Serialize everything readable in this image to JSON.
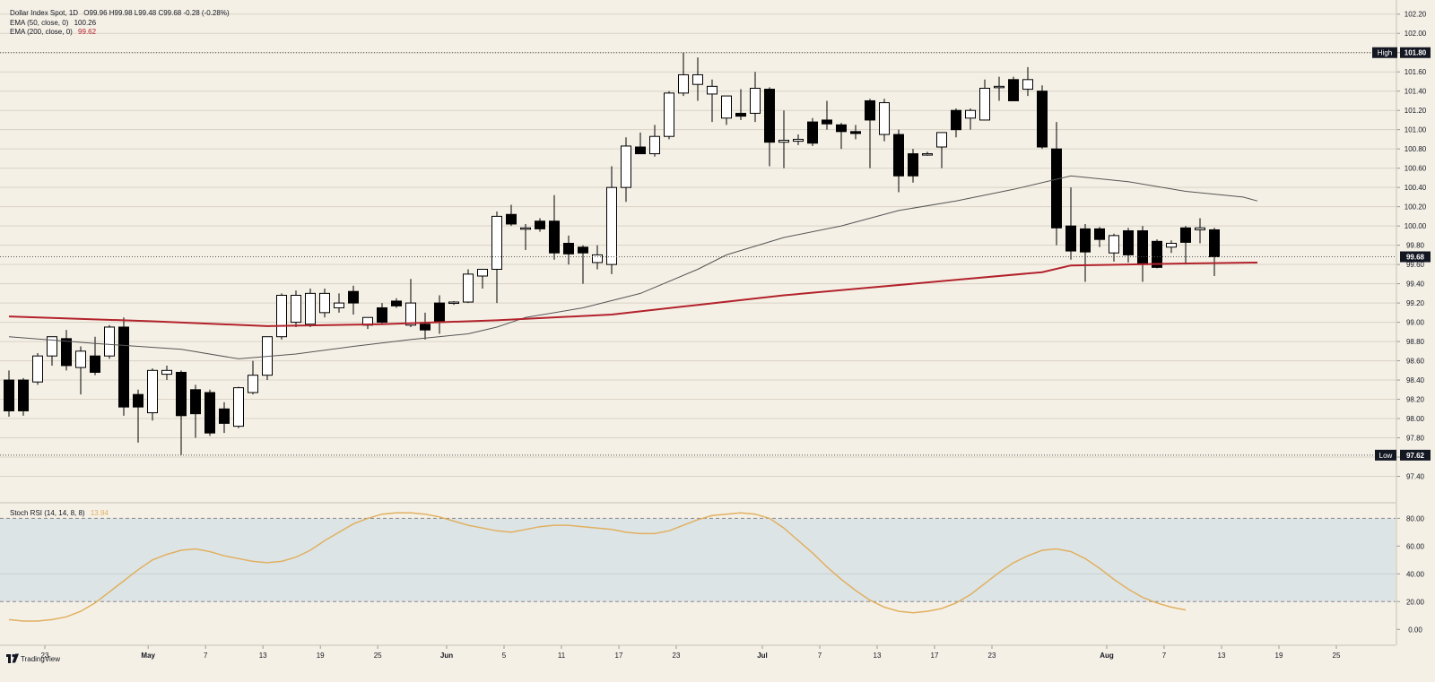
{
  "legend": {
    "main_name": "Dollar Index Spot, 1D",
    "ohlc": "O99.96 H99.98 L99.48 C99.68 -0.28 (-0.28%)",
    "ema50_label": "EMA (50, close, 0)",
    "ema50_value": "100.26",
    "ema200_label": "EMA (200, close, 0)",
    "ema200_value": "99.62",
    "stoch_label": "Stoch RSI (14, 14, 8, 8)",
    "stoch_value": "13.94"
  },
  "markers": {
    "high_label": "High",
    "high_value": "101.80",
    "low_label": "Low",
    "low_value": "97.62",
    "last_value": "99.68"
  },
  "brand": {
    "text": "TradingView"
  },
  "colors": {
    "background": "#f5f0e6",
    "bull_body": "#ffffff",
    "bear_body": "#000000",
    "ema50": "#555555",
    "ema200": "#b2222b",
    "stoch": "#e0b060",
    "stoch_band": "#dde4e6",
    "grid": "#d9d3c5"
  },
  "chart_data": {
    "type": "candlestick",
    "price_axis": {
      "range": [
        97.2,
        102.3
      ],
      "ticks": [
        "102.20",
        "102.00",
        "101.80",
        "101.60",
        "101.40",
        "101.20",
        "101.00",
        "100.80",
        "100.60",
        "100.40",
        "100.20",
        "100.00",
        "99.80",
        "99.60",
        "99.40",
        "99.20",
        "99.00",
        "98.80",
        "98.60",
        "98.40",
        "98.20",
        "98.00",
        "97.80",
        "97.60",
        "97.40"
      ],
      "tick_values": [
        102.2,
        102.0,
        101.8,
        101.6,
        101.4,
        101.2,
        101.0,
        100.8,
        100.6,
        100.4,
        100.2,
        100.0,
        99.8,
        99.6,
        99.4,
        99.2,
        99.0,
        98.8,
        98.6,
        98.4,
        98.2,
        98.0,
        97.8,
        97.6,
        97.4
      ]
    },
    "x_axis": {
      "labels": [
        "23",
        "May",
        "7",
        "13",
        "19",
        "25",
        "Jun",
        "5",
        "11",
        "17",
        "23",
        "Jul",
        "7",
        "13",
        "17",
        "23",
        "Aug",
        "7",
        "13",
        "19",
        "25"
      ],
      "label_bar_index": [
        2.5,
        9.7,
        13.7,
        17.7,
        21.7,
        25.7,
        30.5,
        34.5,
        38.5,
        42.5,
        46.5,
        52.5,
        56.5,
        60.5,
        64.5,
        68.5,
        76.5,
        80.5,
        84.5,
        88.5,
        92.5
      ]
    },
    "candles": [
      {
        "o": 98.4,
        "h": 98.5,
        "l": 98.02,
        "c": 98.08
      },
      {
        "o": 98.4,
        "h": 98.42,
        "l": 98.03,
        "c": 98.08
      },
      {
        "o": 98.38,
        "h": 98.68,
        "l": 98.35,
        "c": 98.65
      },
      {
        "o": 98.65,
        "h": 98.82,
        "l": 98.55,
        "c": 98.85
      },
      {
        "o": 98.83,
        "h": 98.92,
        "l": 98.5,
        "c": 98.55
      },
      {
        "o": 98.53,
        "h": 98.75,
        "l": 98.25,
        "c": 98.7
      },
      {
        "o": 98.65,
        "h": 98.85,
        "l": 98.45,
        "c": 98.48
      },
      {
        "o": 98.65,
        "h": 98.97,
        "l": 98.62,
        "c": 98.95
      },
      {
        "o": 98.95,
        "h": 99.05,
        "l": 98.03,
        "c": 98.12
      },
      {
        "o": 98.25,
        "h": 98.3,
        "l": 97.75,
        "c": 98.12
      },
      {
        "o": 98.06,
        "h": 98.52,
        "l": 97.98,
        "c": 98.5
      },
      {
        "o": 98.46,
        "h": 98.55,
        "l": 98.4,
        "c": 98.5
      },
      {
        "o": 98.48,
        "h": 98.5,
        "l": 97.62,
        "c": 98.03
      },
      {
        "o": 98.3,
        "h": 98.35,
        "l": 97.8,
        "c": 98.05
      },
      {
        "o": 98.27,
        "h": 98.3,
        "l": 97.82,
        "c": 97.85
      },
      {
        "o": 98.1,
        "h": 98.17,
        "l": 97.85,
        "c": 97.95
      },
      {
        "o": 97.92,
        "h": 98.33,
        "l": 97.9,
        "c": 98.32
      },
      {
        "o": 98.27,
        "h": 98.6,
        "l": 98.25,
        "c": 98.45
      },
      {
        "o": 98.45,
        "h": 98.85,
        "l": 98.4,
        "c": 98.85
      },
      {
        "o": 98.85,
        "h": 99.3,
        "l": 98.82,
        "c": 99.28
      },
      {
        "o": 99.0,
        "h": 99.33,
        "l": 98.95,
        "c": 99.28
      },
      {
        "o": 98.98,
        "h": 99.35,
        "l": 98.95,
        "c": 99.3
      },
      {
        "o": 99.1,
        "h": 99.35,
        "l": 99.05,
        "c": 99.3
      },
      {
        "o": 99.15,
        "h": 99.3,
        "l": 99.1,
        "c": 99.2
      },
      {
        "o": 99.32,
        "h": 99.38,
        "l": 99.08,
        "c": 99.2
      },
      {
        "o": 98.97,
        "h": 99.05,
        "l": 98.93,
        "c": 99.05
      },
      {
        "o": 99.15,
        "h": 99.2,
        "l": 98.98,
        "c": 99.0
      },
      {
        "o": 99.22,
        "h": 99.25,
        "l": 99.15,
        "c": 99.17
      },
      {
        "o": 98.97,
        "h": 99.45,
        "l": 98.95,
        "c": 99.2
      },
      {
        "o": 98.98,
        "h": 99.1,
        "l": 98.82,
        "c": 98.92
      },
      {
        "o": 99.2,
        "h": 99.28,
        "l": 98.88,
        "c": 99.0
      },
      {
        "o": 99.2,
        "h": 99.22,
        "l": 99.18,
        "c": 99.21
      },
      {
        "o": 99.21,
        "h": 99.55,
        "l": 99.2,
        "c": 99.5
      },
      {
        "o": 99.48,
        "h": 99.55,
        "l": 99.35,
        "c": 99.55
      },
      {
        "o": 99.55,
        "h": 100.15,
        "l": 99.2,
        "c": 100.1
      },
      {
        "o": 100.12,
        "h": 100.22,
        "l": 100.0,
        "c": 100.02
      },
      {
        "o": 99.97,
        "h": 100.02,
        "l": 99.75,
        "c": 99.98
      },
      {
        "o": 100.05,
        "h": 100.08,
        "l": 99.94,
        "c": 99.97
      },
      {
        "o": 100.05,
        "h": 100.32,
        "l": 99.65,
        "c": 99.72
      },
      {
        "o": 99.82,
        "h": 99.9,
        "l": 99.6,
        "c": 99.71
      },
      {
        "o": 99.78,
        "h": 99.8,
        "l": 99.4,
        "c": 99.72
      },
      {
        "o": 99.62,
        "h": 99.8,
        "l": 99.55,
        "c": 99.7
      },
      {
        "o": 99.6,
        "h": 100.62,
        "l": 99.5,
        "c": 100.4
      },
      {
        "o": 100.4,
        "h": 100.92,
        "l": 100.25,
        "c": 100.83
      },
      {
        "o": 100.82,
        "h": 100.97,
        "l": 100.77,
        "c": 100.75
      },
      {
        "o": 100.75,
        "h": 101.05,
        "l": 100.72,
        "c": 100.93
      },
      {
        "o": 100.93,
        "h": 101.4,
        "l": 100.9,
        "c": 101.38
      },
      {
        "o": 101.38,
        "h": 101.8,
        "l": 101.35,
        "c": 101.57
      },
      {
        "o": 101.47,
        "h": 101.75,
        "l": 101.3,
        "c": 101.57
      },
      {
        "o": 101.37,
        "h": 101.52,
        "l": 101.08,
        "c": 101.45
      },
      {
        "o": 101.12,
        "h": 101.35,
        "l": 101.05,
        "c": 101.35
      },
      {
        "o": 101.17,
        "h": 101.42,
        "l": 101.1,
        "c": 101.14
      },
      {
        "o": 101.17,
        "h": 101.6,
        "l": 101.08,
        "c": 101.43
      },
      {
        "o": 101.42,
        "h": 101.44,
        "l": 100.62,
        "c": 100.87
      },
      {
        "o": 100.87,
        "h": 101.2,
        "l": 100.6,
        "c": 100.89
      },
      {
        "o": 100.88,
        "h": 100.95,
        "l": 100.84,
        "c": 100.9
      },
      {
        "o": 101.08,
        "h": 101.12,
        "l": 100.83,
        "c": 100.86
      },
      {
        "o": 101.1,
        "h": 101.3,
        "l": 101.0,
        "c": 101.06
      },
      {
        "o": 101.05,
        "h": 101.07,
        "l": 100.8,
        "c": 100.98
      },
      {
        "o": 100.98,
        "h": 101.05,
        "l": 100.9,
        "c": 100.96
      },
      {
        "o": 101.3,
        "h": 101.32,
        "l": 100.6,
        "c": 101.1
      },
      {
        "o": 100.95,
        "h": 101.32,
        "l": 100.88,
        "c": 101.28
      },
      {
        "o": 100.95,
        "h": 101.0,
        "l": 100.35,
        "c": 100.52
      },
      {
        "o": 100.75,
        "h": 100.8,
        "l": 100.45,
        "c": 100.52
      },
      {
        "o": 100.74,
        "h": 100.77,
        "l": 100.73,
        "c": 100.75
      },
      {
        "o": 100.82,
        "h": 100.97,
        "l": 100.6,
        "c": 100.97
      },
      {
        "o": 101.2,
        "h": 101.22,
        "l": 100.92,
        "c": 101.0
      },
      {
        "o": 101.12,
        "h": 101.22,
        "l": 101.0,
        "c": 101.2
      },
      {
        "o": 101.1,
        "h": 101.52,
        "l": 101.1,
        "c": 101.43
      },
      {
        "o": 101.44,
        "h": 101.55,
        "l": 101.3,
        "c": 101.45
      },
      {
        "o": 101.52,
        "h": 101.55,
        "l": 101.3,
        "c": 101.3
      },
      {
        "o": 101.42,
        "h": 101.65,
        "l": 101.35,
        "c": 101.52
      },
      {
        "o": 101.4,
        "h": 101.46,
        "l": 100.8,
        "c": 100.82
      },
      {
        "o": 100.8,
        "h": 101.08,
        "l": 99.8,
        "c": 99.98
      },
      {
        "o": 100.0,
        "h": 100.4,
        "l": 99.65,
        "c": 99.74
      },
      {
        "o": 99.97,
        "h": 100.02,
        "l": 99.42,
        "c": 99.73
      },
      {
        "o": 99.97,
        "h": 99.99,
        "l": 99.78,
        "c": 99.86
      },
      {
        "o": 99.72,
        "h": 99.92,
        "l": 99.63,
        "c": 99.9
      },
      {
        "o": 99.95,
        "h": 99.98,
        "l": 99.62,
        "c": 99.7
      },
      {
        "o": 99.95,
        "h": 100.0,
        "l": 99.42,
        "c": 99.6
      },
      {
        "o": 99.84,
        "h": 99.86,
        "l": 99.56,
        "c": 99.57
      },
      {
        "o": 99.78,
        "h": 99.85,
        "l": 99.72,
        "c": 99.82
      },
      {
        "o": 99.98,
        "h": 100.0,
        "l": 99.6,
        "c": 99.83
      },
      {
        "o": 99.96,
        "h": 100.08,
        "l": 99.82,
        "c": 99.98
      },
      {
        "o": 99.96,
        "h": 99.98,
        "l": 99.48,
        "c": 99.68
      }
    ],
    "ema50": [
      [
        0,
        98.85
      ],
      [
        6,
        98.78
      ],
      [
        12,
        98.72
      ],
      [
        16,
        98.62
      ],
      [
        20,
        98.67
      ],
      [
        24,
        98.75
      ],
      [
        28,
        98.82
      ],
      [
        32,
        98.88
      ],
      [
        34,
        98.95
      ],
      [
        36,
        99.05
      ],
      [
        40,
        99.15
      ],
      [
        44,
        99.3
      ],
      [
        48,
        99.55
      ],
      [
        50,
        99.7
      ],
      [
        54,
        99.88
      ],
      [
        58,
        100.0
      ],
      [
        62,
        100.16
      ],
      [
        66,
        100.26
      ],
      [
        70,
        100.38
      ],
      [
        74,
        100.52
      ],
      [
        78,
        100.46
      ],
      [
        82,
        100.36
      ],
      [
        86,
        100.3
      ],
      [
        87,
        100.26
      ]
    ],
    "ema200": [
      [
        0,
        99.06
      ],
      [
        10,
        99.01
      ],
      [
        18,
        98.96
      ],
      [
        26,
        98.98
      ],
      [
        34,
        99.02
      ],
      [
        42,
        99.08
      ],
      [
        48,
        99.18
      ],
      [
        54,
        99.28
      ],
      [
        60,
        99.36
      ],
      [
        66,
        99.44
      ],
      [
        72,
        99.52
      ],
      [
        74,
        99.59
      ],
      [
        78,
        99.6
      ],
      [
        82,
        99.61
      ],
      [
        87,
        99.62
      ]
    ],
    "stoch_rsi": {
      "range": [
        -5,
        88
      ],
      "ticks": [
        "80.00",
        "60.00",
        "40.00",
        "20.00",
        "0.00"
      ],
      "tick_values": [
        80,
        60,
        40,
        20,
        0
      ],
      "band": [
        20,
        80
      ],
      "k": [
        [
          0,
          7
        ],
        [
          1,
          6
        ],
        [
          2,
          6
        ],
        [
          3,
          7
        ],
        [
          4,
          9
        ],
        [
          5,
          13
        ],
        [
          6,
          19
        ],
        [
          7,
          27
        ],
        [
          8,
          35
        ],
        [
          9,
          43
        ],
        [
          10,
          50
        ],
        [
          11,
          54
        ],
        [
          12,
          57
        ],
        [
          13,
          58
        ],
        [
          14,
          56
        ],
        [
          15,
          53
        ],
        [
          16,
          51
        ],
        [
          17,
          49
        ],
        [
          18,
          48
        ],
        [
          19,
          49
        ],
        [
          20,
          52
        ],
        [
          21,
          57
        ],
        [
          22,
          64
        ],
        [
          23,
          70
        ],
        [
          24,
          76
        ],
        [
          25,
          80
        ],
        [
          26,
          83
        ],
        [
          27,
          84
        ],
        [
          28,
          84
        ],
        [
          29,
          83
        ],
        [
          30,
          81
        ],
        [
          31,
          78
        ],
        [
          32,
          75
        ],
        [
          33,
          73
        ],
        [
          34,
          71
        ],
        [
          35,
          70
        ],
        [
          36,
          72
        ],
        [
          37,
          74
        ],
        [
          38,
          75
        ],
        [
          39,
          75
        ],
        [
          40,
          74
        ],
        [
          41,
          73
        ],
        [
          42,
          72
        ],
        [
          43,
          70
        ],
        [
          44,
          69
        ],
        [
          45,
          69
        ],
        [
          46,
          71
        ],
        [
          47,
          75
        ],
        [
          48,
          79
        ],
        [
          49,
          82
        ],
        [
          50,
          83
        ],
        [
          51,
          84
        ],
        [
          52,
          83
        ],
        [
          53,
          80
        ],
        [
          54,
          73
        ],
        [
          55,
          64
        ],
        [
          56,
          55
        ],
        [
          57,
          45
        ],
        [
          58,
          36
        ],
        [
          59,
          28
        ],
        [
          60,
          21
        ],
        [
          61,
          16
        ],
        [
          62,
          13
        ],
        [
          63,
          12
        ],
        [
          64,
          13
        ],
        [
          65,
          15
        ],
        [
          66,
          19
        ],
        [
          67,
          25
        ],
        [
          68,
          33
        ],
        [
          69,
          41
        ],
        [
          70,
          48
        ],
        [
          71,
          53
        ],
        [
          72,
          57
        ],
        [
          73,
          58
        ],
        [
          74,
          56
        ],
        [
          75,
          51
        ],
        [
          76,
          44
        ],
        [
          77,
          36
        ],
        [
          78,
          29
        ],
        [
          79,
          23
        ],
        [
          80,
          19
        ],
        [
          81,
          16
        ],
        [
          82,
          14
        ]
      ]
    }
  }
}
